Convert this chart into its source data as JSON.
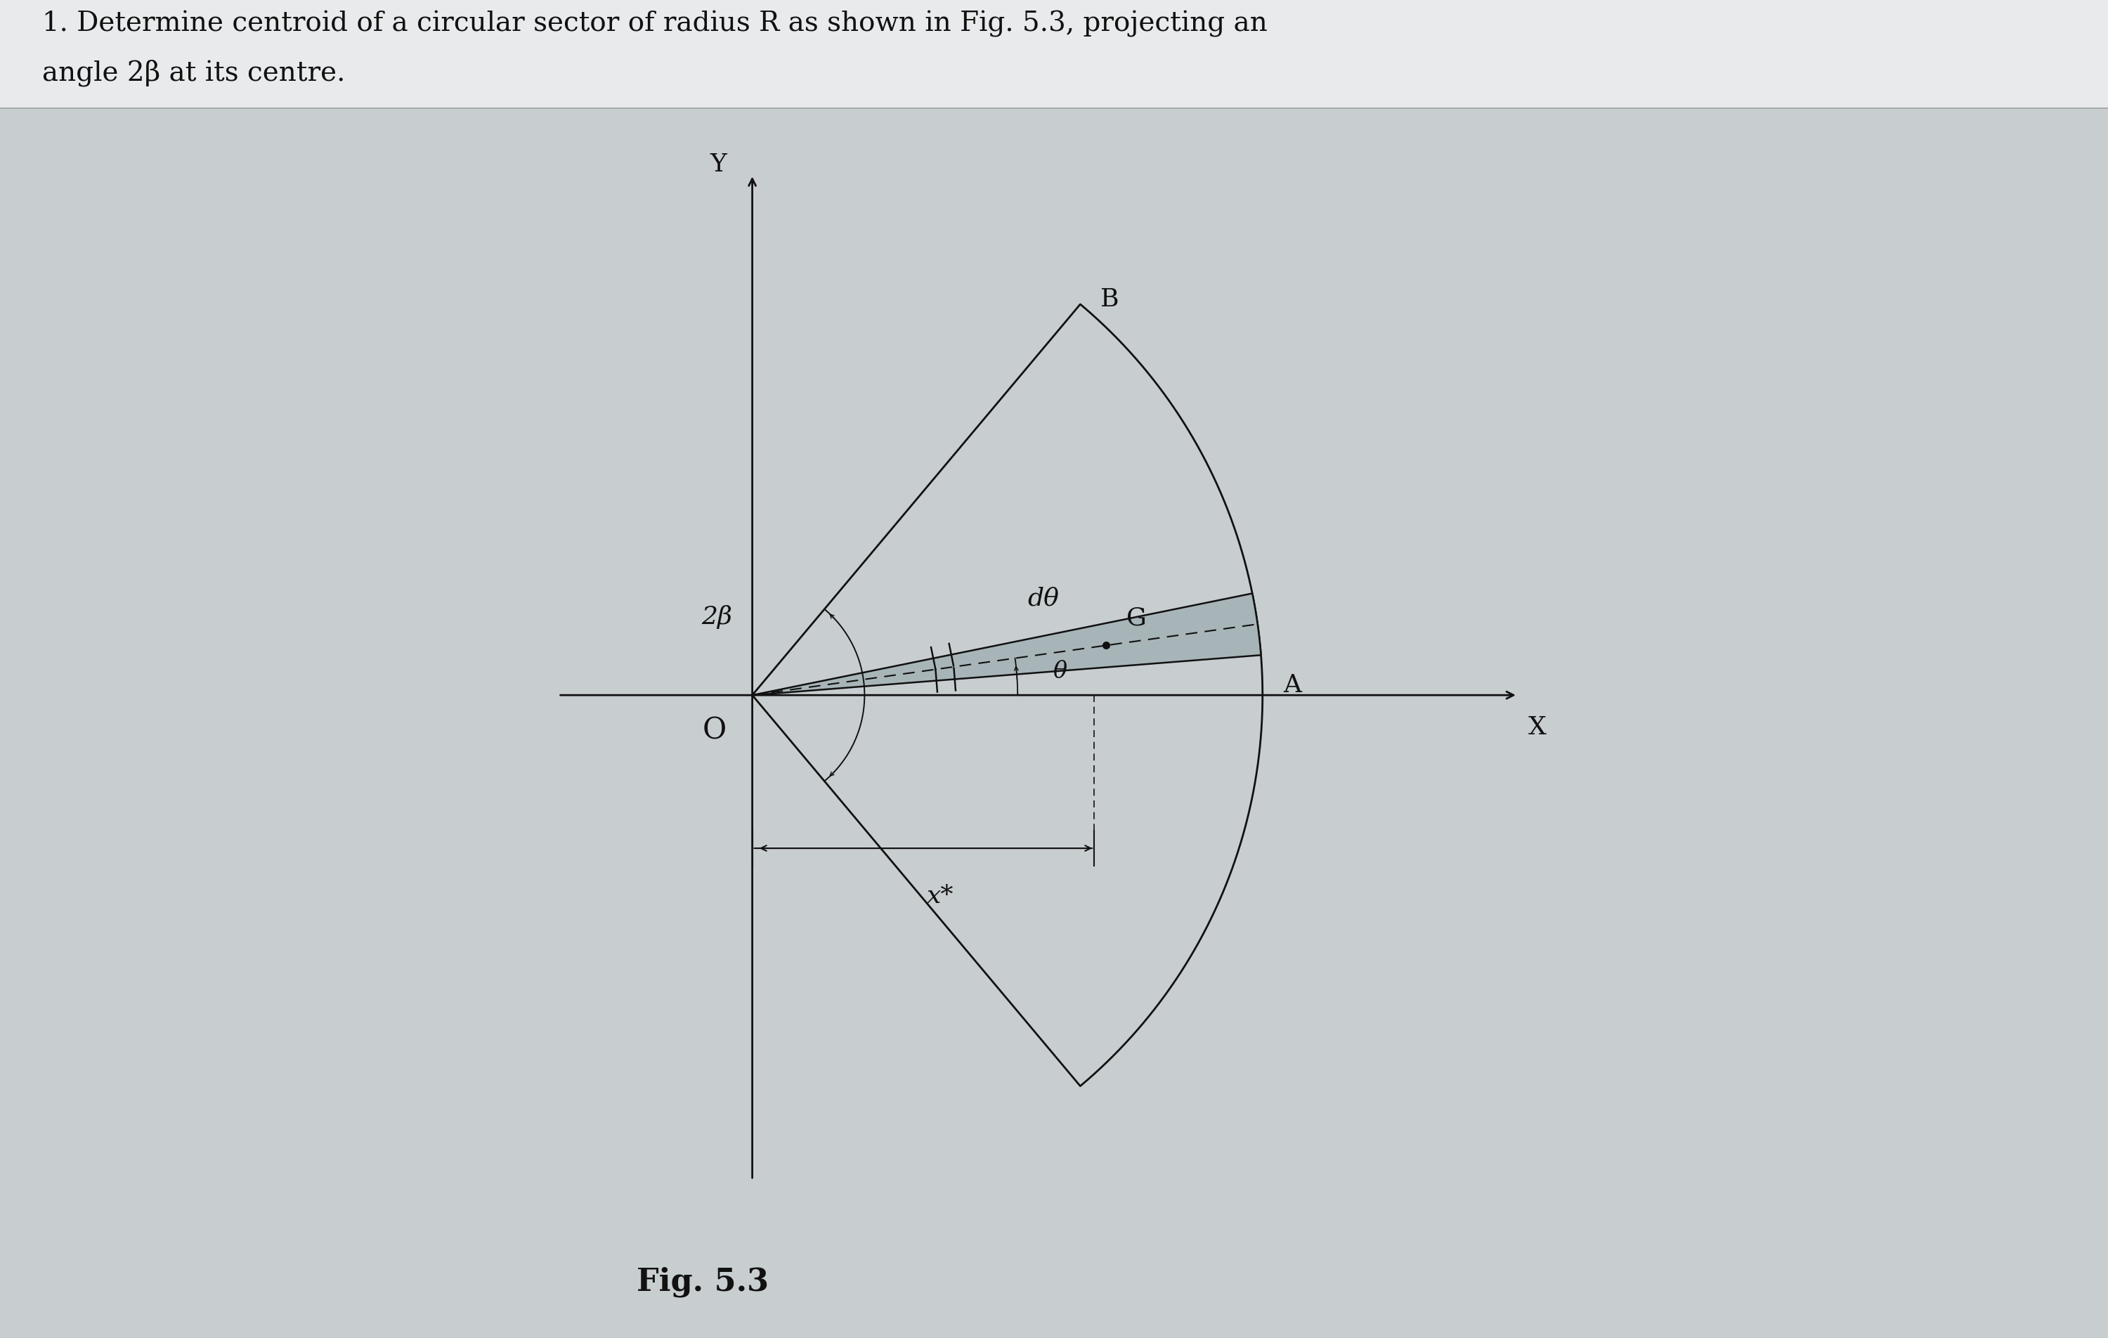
{
  "bg_color": "#c8cdd0",
  "title_line1": "1. Determine centroid of a circular sector of radius R as shown in Fig. 5.3, projecting an",
  "title_line2": "angle 2β at its centre.",
  "fig_caption": "Fig. 5.3",
  "R": 1.0,
  "beta_deg": 50,
  "theta_deg": 8,
  "dtheta_deg": 7,
  "label_O": "O",
  "label_Y": "Y",
  "label_X": "X",
  "label_2beta": "2β",
  "label_dtheta": "dθ",
  "label_theta": "θ",
  "label_G": "G",
  "label_A": "A",
  "label_B": "B",
  "label_xstar": "x*",
  "line_color": "#111111",
  "sector_fill": "#c8cdd0",
  "dtheta_fill": "#a8b5b8",
  "text_color": "#111111",
  "title_fontsize": 28,
  "label_fontsize": 26,
  "caption_fontsize": 28,
  "lw": 2.0
}
